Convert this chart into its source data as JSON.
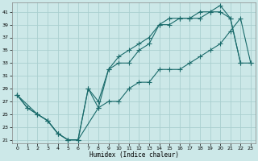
{
  "bg_color": "#cce8e8",
  "grid_color": "#aacfcf",
  "line_color": "#1a6b6b",
  "xlabel": "Humidex (Indice chaleur)",
  "xlim": [
    -0.5,
    23.5
  ],
  "ylim": [
    20.5,
    42.5
  ],
  "xticks": [
    0,
    1,
    2,
    3,
    4,
    5,
    6,
    7,
    8,
    9,
    10,
    11,
    12,
    13,
    14,
    15,
    16,
    17,
    18,
    19,
    20,
    21,
    22,
    23
  ],
  "yticks": [
    21,
    23,
    25,
    27,
    29,
    31,
    33,
    35,
    37,
    39,
    41
  ],
  "series": [
    {
      "x": [
        0,
        1,
        2,
        3,
        4,
        5,
        6,
        7,
        8,
        9,
        10,
        11,
        12,
        13,
        14,
        15,
        16,
        17,
        18,
        19,
        20,
        21,
        22
      ],
      "y": [
        28,
        26,
        25,
        24,
        22,
        21,
        21,
        29,
        26,
        32,
        33,
        33,
        35,
        36,
        39,
        39,
        40,
        40,
        40,
        41,
        41,
        40,
        33
      ]
    },
    {
      "x": [
        0,
        1,
        2,
        3,
        4,
        5,
        6,
        7,
        8,
        9,
        10,
        11,
        12,
        13,
        14,
        15,
        16,
        17,
        18,
        19,
        20,
        21,
        22,
        23
      ],
      "y": [
        28,
        26,
        25,
        24,
        22,
        21,
        21,
        29,
        27,
        32,
        34,
        35,
        36,
        37,
        39,
        40,
        40,
        40,
        41,
        41,
        42,
        40,
        33,
        33
      ]
    },
    {
      "x": [
        0,
        2,
        3,
        4,
        5,
        6,
        8,
        9,
        10,
        11,
        12,
        13,
        14,
        15,
        16,
        17,
        18,
        19,
        20,
        21,
        22,
        23
      ],
      "y": [
        28,
        25,
        24,
        22,
        21,
        21,
        26,
        27,
        27,
        29,
        30,
        30,
        32,
        32,
        32,
        33,
        34,
        35,
        36,
        38,
        40,
        33
      ]
    }
  ]
}
